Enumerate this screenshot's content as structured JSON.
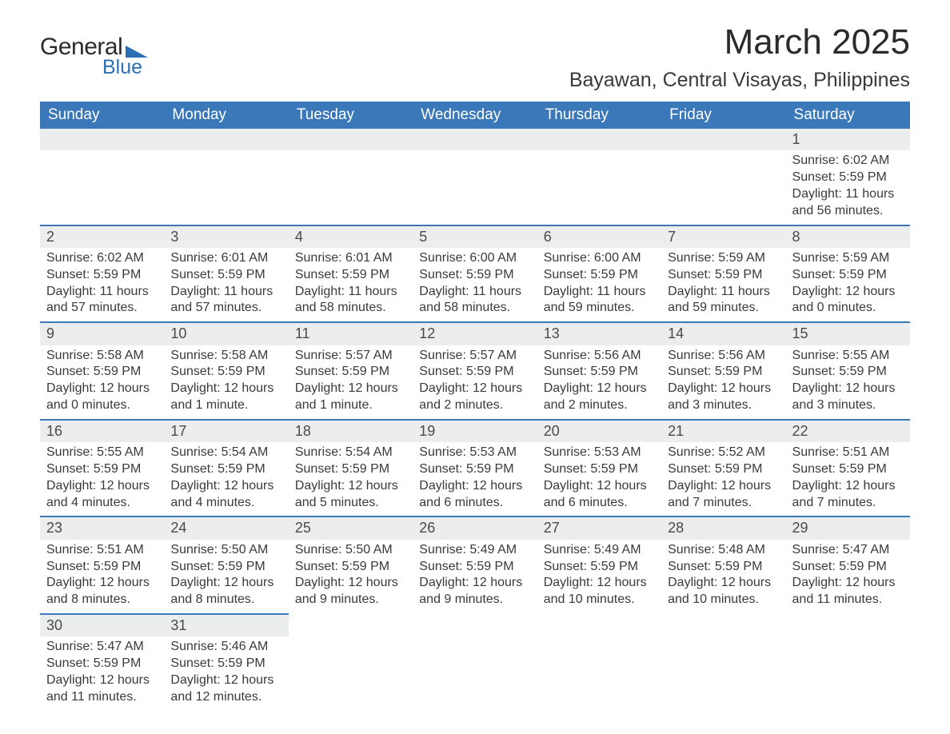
{
  "brand": {
    "word1": "General",
    "word2": "Blue",
    "logo_color": "#2c6fb3"
  },
  "title": "March 2025",
  "location": "Bayawan, Central Visayas, Philippines",
  "colors": {
    "header_bg": "#3a78b9",
    "header_text": "#ffffff",
    "daynum_bg": "#eceded",
    "row_border": "#3a78b9",
    "text": "#3a3a3a"
  },
  "fonts": {
    "title_size_pt": 33,
    "location_size_pt": 19,
    "header_size_pt": 14,
    "body_size_pt": 12
  },
  "day_headers": [
    "Sunday",
    "Monday",
    "Tuesday",
    "Wednesday",
    "Thursday",
    "Friday",
    "Saturday"
  ],
  "weeks": [
    [
      null,
      null,
      null,
      null,
      null,
      null,
      {
        "n": "1",
        "sunrise": "Sunrise: 6:02 AM",
        "sunset": "Sunset: 5:59 PM",
        "day1": "Daylight: 11 hours",
        "day2": "and 56 minutes."
      }
    ],
    [
      {
        "n": "2",
        "sunrise": "Sunrise: 6:02 AM",
        "sunset": "Sunset: 5:59 PM",
        "day1": "Daylight: 11 hours",
        "day2": "and 57 minutes."
      },
      {
        "n": "3",
        "sunrise": "Sunrise: 6:01 AM",
        "sunset": "Sunset: 5:59 PM",
        "day1": "Daylight: 11 hours",
        "day2": "and 57 minutes."
      },
      {
        "n": "4",
        "sunrise": "Sunrise: 6:01 AM",
        "sunset": "Sunset: 5:59 PM",
        "day1": "Daylight: 11 hours",
        "day2": "and 58 minutes."
      },
      {
        "n": "5",
        "sunrise": "Sunrise: 6:00 AM",
        "sunset": "Sunset: 5:59 PM",
        "day1": "Daylight: 11 hours",
        "day2": "and 58 minutes."
      },
      {
        "n": "6",
        "sunrise": "Sunrise: 6:00 AM",
        "sunset": "Sunset: 5:59 PM",
        "day1": "Daylight: 11 hours",
        "day2": "and 59 minutes."
      },
      {
        "n": "7",
        "sunrise": "Sunrise: 5:59 AM",
        "sunset": "Sunset: 5:59 PM",
        "day1": "Daylight: 11 hours",
        "day2": "and 59 minutes."
      },
      {
        "n": "8",
        "sunrise": "Sunrise: 5:59 AM",
        "sunset": "Sunset: 5:59 PM",
        "day1": "Daylight: 12 hours",
        "day2": "and 0 minutes."
      }
    ],
    [
      {
        "n": "9",
        "sunrise": "Sunrise: 5:58 AM",
        "sunset": "Sunset: 5:59 PM",
        "day1": "Daylight: 12 hours",
        "day2": "and 0 minutes."
      },
      {
        "n": "10",
        "sunrise": "Sunrise: 5:58 AM",
        "sunset": "Sunset: 5:59 PM",
        "day1": "Daylight: 12 hours",
        "day2": "and 1 minute."
      },
      {
        "n": "11",
        "sunrise": "Sunrise: 5:57 AM",
        "sunset": "Sunset: 5:59 PM",
        "day1": "Daylight: 12 hours",
        "day2": "and 1 minute."
      },
      {
        "n": "12",
        "sunrise": "Sunrise: 5:57 AM",
        "sunset": "Sunset: 5:59 PM",
        "day1": "Daylight: 12 hours",
        "day2": "and 2 minutes."
      },
      {
        "n": "13",
        "sunrise": "Sunrise: 5:56 AM",
        "sunset": "Sunset: 5:59 PM",
        "day1": "Daylight: 12 hours",
        "day2": "and 2 minutes."
      },
      {
        "n": "14",
        "sunrise": "Sunrise: 5:56 AM",
        "sunset": "Sunset: 5:59 PM",
        "day1": "Daylight: 12 hours",
        "day2": "and 3 minutes."
      },
      {
        "n": "15",
        "sunrise": "Sunrise: 5:55 AM",
        "sunset": "Sunset: 5:59 PM",
        "day1": "Daylight: 12 hours",
        "day2": "and 3 minutes."
      }
    ],
    [
      {
        "n": "16",
        "sunrise": "Sunrise: 5:55 AM",
        "sunset": "Sunset: 5:59 PM",
        "day1": "Daylight: 12 hours",
        "day2": "and 4 minutes."
      },
      {
        "n": "17",
        "sunrise": "Sunrise: 5:54 AM",
        "sunset": "Sunset: 5:59 PM",
        "day1": "Daylight: 12 hours",
        "day2": "and 4 minutes."
      },
      {
        "n": "18",
        "sunrise": "Sunrise: 5:54 AM",
        "sunset": "Sunset: 5:59 PM",
        "day1": "Daylight: 12 hours",
        "day2": "and 5 minutes."
      },
      {
        "n": "19",
        "sunrise": "Sunrise: 5:53 AM",
        "sunset": "Sunset: 5:59 PM",
        "day1": "Daylight: 12 hours",
        "day2": "and 6 minutes."
      },
      {
        "n": "20",
        "sunrise": "Sunrise: 5:53 AM",
        "sunset": "Sunset: 5:59 PM",
        "day1": "Daylight: 12 hours",
        "day2": "and 6 minutes."
      },
      {
        "n": "21",
        "sunrise": "Sunrise: 5:52 AM",
        "sunset": "Sunset: 5:59 PM",
        "day1": "Daylight: 12 hours",
        "day2": "and 7 minutes."
      },
      {
        "n": "22",
        "sunrise": "Sunrise: 5:51 AM",
        "sunset": "Sunset: 5:59 PM",
        "day1": "Daylight: 12 hours",
        "day2": "and 7 minutes."
      }
    ],
    [
      {
        "n": "23",
        "sunrise": "Sunrise: 5:51 AM",
        "sunset": "Sunset: 5:59 PM",
        "day1": "Daylight: 12 hours",
        "day2": "and 8 minutes."
      },
      {
        "n": "24",
        "sunrise": "Sunrise: 5:50 AM",
        "sunset": "Sunset: 5:59 PM",
        "day1": "Daylight: 12 hours",
        "day2": "and 8 minutes."
      },
      {
        "n": "25",
        "sunrise": "Sunrise: 5:50 AM",
        "sunset": "Sunset: 5:59 PM",
        "day1": "Daylight: 12 hours",
        "day2": "and 9 minutes."
      },
      {
        "n": "26",
        "sunrise": "Sunrise: 5:49 AM",
        "sunset": "Sunset: 5:59 PM",
        "day1": "Daylight: 12 hours",
        "day2": "and 9 minutes."
      },
      {
        "n": "27",
        "sunrise": "Sunrise: 5:49 AM",
        "sunset": "Sunset: 5:59 PM",
        "day1": "Daylight: 12 hours",
        "day2": "and 10 minutes."
      },
      {
        "n": "28",
        "sunrise": "Sunrise: 5:48 AM",
        "sunset": "Sunset: 5:59 PM",
        "day1": "Daylight: 12 hours",
        "day2": "and 10 minutes."
      },
      {
        "n": "29",
        "sunrise": "Sunrise: 5:47 AM",
        "sunset": "Sunset: 5:59 PM",
        "day1": "Daylight: 12 hours",
        "day2": "and 11 minutes."
      }
    ],
    [
      {
        "n": "30",
        "sunrise": "Sunrise: 5:47 AM",
        "sunset": "Sunset: 5:59 PM",
        "day1": "Daylight: 12 hours",
        "day2": "and 11 minutes."
      },
      {
        "n": "31",
        "sunrise": "Sunrise: 5:46 AM",
        "sunset": "Sunset: 5:59 PM",
        "day1": "Daylight: 12 hours",
        "day2": "and 12 minutes."
      },
      null,
      null,
      null,
      null,
      null
    ]
  ]
}
